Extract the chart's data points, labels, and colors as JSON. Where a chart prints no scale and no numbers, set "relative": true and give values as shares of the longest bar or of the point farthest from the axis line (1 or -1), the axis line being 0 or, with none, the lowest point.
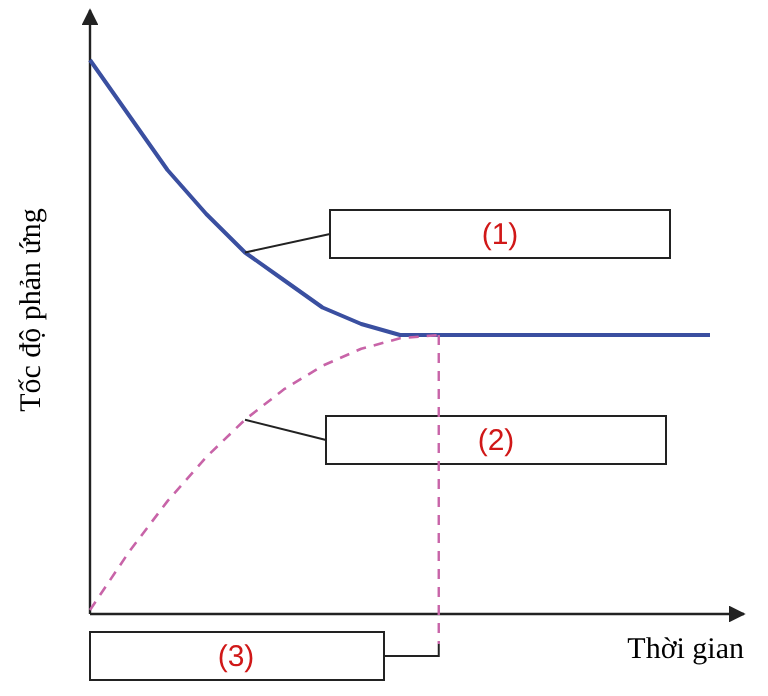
{
  "chart_data": {
    "type": "line",
    "relative": true,
    "categories": [
      null,
      null,
      null,
      null,
      null,
      null,
      null,
      null,
      null,
      null,
      null,
      null,
      null,
      null,
      null,
      null,
      null
    ],
    "xlabel": "Thời gian",
    "ylabel": "Tốc độ phản ứng",
    "marker": "none",
    "series": [
      {
        "color": "#3a4fa0",
        "line_style": "solid",
        "values": [
          1,
          0.9,
          0.8,
          0.72,
          0.65,
          0.6,
          0.55,
          0.52,
          0.5,
          0.5,
          0.5,
          0.5,
          0.5,
          0.5,
          0.5,
          0.5,
          0.5
        ]
      },
      {
        "color": "#c864a8",
        "line_style": "dashed",
        "values": [
          0,
          0.105,
          0.198,
          0.278,
          0.346,
          0.401,
          0.444,
          0.475,
          0.494,
          0.5,
          null,
          null,
          null,
          null,
          null,
          null,
          null
        ]
      }
    ],
    "annotations": [
      "(1)",
      "(2)",
      "(3)"
    ]
  }
}
